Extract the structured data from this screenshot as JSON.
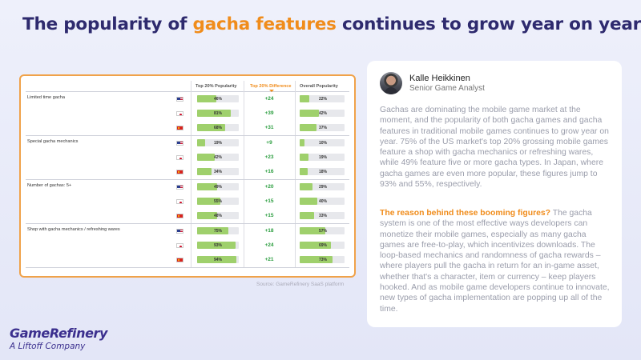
{
  "title": {
    "part1": "The popularity of ",
    "highlight": "gacha features",
    "part2": " continues to grow year on year"
  },
  "table": {
    "headers": {
      "top": "Top 20% Popularity",
      "diff": "Top 20% Difference",
      "overall": "Overall Popularity"
    },
    "groups": [
      {
        "label": "Limited time gacha",
        "rows": [
          {
            "country": "us",
            "top": "46%",
            "top_value": 46,
            "diff": "+24",
            "overall": "22%",
            "overall_value": 22
          },
          {
            "country": "jp",
            "top": "81%",
            "top_value": 81,
            "diff": "+39",
            "overall": "42%",
            "overall_value": 42
          },
          {
            "country": "cn",
            "top": "68%",
            "top_value": 68,
            "diff": "+31",
            "overall": "37%",
            "overall_value": 37
          }
        ]
      },
      {
        "label": "Special gacha mechanics",
        "rows": [
          {
            "country": "us",
            "top": "19%",
            "top_value": 19,
            "diff": "+9",
            "overall": "10%",
            "overall_value": 10
          },
          {
            "country": "jp",
            "top": "42%",
            "top_value": 42,
            "diff": "+23",
            "overall": "19%",
            "overall_value": 19
          },
          {
            "country": "cn",
            "top": "34%",
            "top_value": 34,
            "diff": "+16",
            "overall": "18%",
            "overall_value": 18
          }
        ]
      },
      {
        "label": "Number of gachas: 5+",
        "rows": [
          {
            "country": "us",
            "top": "49%",
            "top_value": 49,
            "diff": "+20",
            "overall": "29%",
            "overall_value": 29
          },
          {
            "country": "jp",
            "top": "55%",
            "top_value": 55,
            "diff": "+15",
            "overall": "40%",
            "overall_value": 40
          },
          {
            "country": "cn",
            "top": "48%",
            "top_value": 48,
            "diff": "+15",
            "overall": "33%",
            "overall_value": 33
          }
        ]
      },
      {
        "label": "Shop with gacha mechanics / refreshing wares",
        "rows": [
          {
            "country": "us",
            "top": "75%",
            "top_value": 75,
            "diff": "+18",
            "overall": "57%",
            "overall_value": 57
          },
          {
            "country": "jp",
            "top": "93%",
            "top_value": 93,
            "diff": "+24",
            "overall": "69%",
            "overall_value": 69
          },
          {
            "country": "cn",
            "top": "94%",
            "top_value": 94,
            "diff": "+21",
            "overall": "73%",
            "overall_value": 73
          }
        ]
      }
    ]
  },
  "source": "Source: GameRefinery SaaS platform",
  "author": {
    "name": "Kalle Heikkinen",
    "role": "Senior Game Analyst"
  },
  "article": {
    "p1": "Gachas are dominating the mobile game market at the moment, and the popularity of both gacha games and gacha features in traditional mobile games continues to grow year on year. 75% of the US market's top 20% grossing mobile games feature a shop with gacha mechanics or refreshing wares, while 49% feature five or more gacha types. In Japan, where gacha games are even more popular, these figures jump to 93% and 55%, respectively.",
    "p2_lead": "The reason behind these booming figures?",
    "p2_body": " The gacha system is one of the most effective ways developers can monetize their mobile games, especially as many gacha games are free-to-play, which incentivizes downloads. The loop-based mechanics and randomness of gacha rewards – where players pull the gacha in return for an in-game asset, whether that's a character, item or currency – keep players hooked. And as mobile game developers continue to innovate, new types of gacha implementation are popping up all of the time."
  },
  "logo": {
    "name": "GameRefinery",
    "tagline": "A Liftoff Company"
  },
  "colors": {
    "accent": "#f08c1b",
    "title": "#2e2a6e",
    "bar_fill": "#9fd06c",
    "diff_text": "#2a9d3e"
  }
}
